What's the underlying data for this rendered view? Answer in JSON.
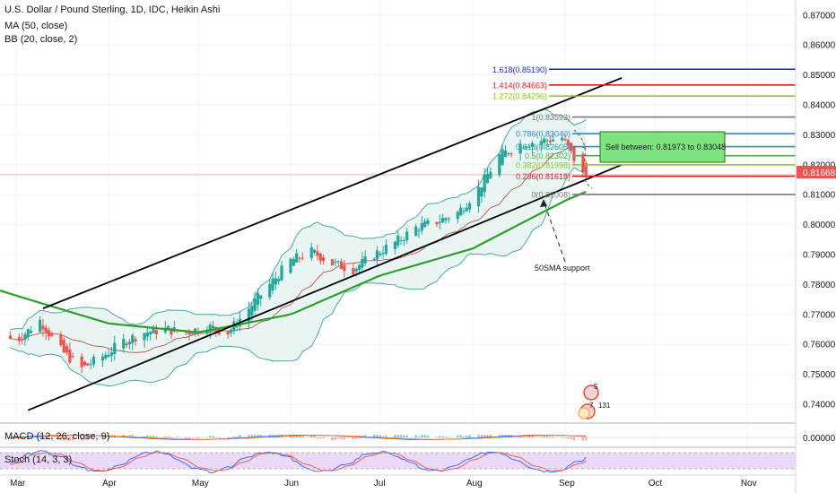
{
  "header": {
    "title": "U.S. Dollar / Pound Sterling, 1D, IDC, Heikin Ashi",
    "ma_label": "MA (50, close)",
    "bb_label": "BB (20, close, 2)"
  },
  "panes": {
    "macd_label": "MACD (12, 26, close, 9)",
    "stoch_label": "Stoch (14, 3, 3)",
    "macd_value": "0.00000"
  },
  "price_axis": {
    "ticks": [
      "0.87000",
      "0.86000",
      "0.85000",
      "0.84000",
      "0.83000",
      "0.82000",
      "0.81000",
      "0.80000",
      "0.79000",
      "0.78000",
      "0.77000",
      "0.76000",
      "0.75000",
      "0.74000"
    ],
    "last_price": "0.81668"
  },
  "time_axis": {
    "labels": [
      "Mar",
      "Apr",
      "May",
      "Jun",
      "Jul",
      "Aug",
      "Sep",
      "Oct",
      "Nov"
    ]
  },
  "fib": [
    {
      "label": "1.618(0.85190)",
      "value": 0.8519,
      "color": "#1e26c9"
    },
    {
      "label": "1.414(0.84663)",
      "value": 0.84663,
      "color": "#e01b1b"
    },
    {
      "label": "1.272(0.84296)",
      "value": 0.84296,
      "color": "#8bc41e"
    },
    {
      "label": "1(0.83593)",
      "value": 0.83593,
      "color": "#787878"
    },
    {
      "label": "0.786(0.83040)",
      "value": 0.8304,
      "color": "#2a8bd4"
    },
    {
      "label": "0.618(0.82605)",
      "value": 0.82605,
      "color": "#15a0a0"
    },
    {
      "label": "0.5(0.82302)",
      "value": 0.82302,
      "color": "#4caf50"
    },
    {
      "label": "0.382(0.81998)",
      "value": 0.81998,
      "color": "#8bc41e"
    },
    {
      "label": "0.236(0.81618)",
      "value": 0.81618,
      "color": "#e01b1b"
    },
    {
      "label": "0(0.81008)",
      "value": 0.81008,
      "color": "#787878"
    }
  ],
  "annotations": {
    "sell_box": "Sell between: 0.81973 to 0.83048",
    "support": "50SMA support",
    "event_top": "5",
    "event_mid": "7",
    "event_right": "131"
  },
  "colors": {
    "up": "#26a69a",
    "down": "#ef5350",
    "ma": "#2e9d2e",
    "bb_basis": "#b2432f",
    "bb_band": "#4ea79f",
    "bb_fill": "#e6f4f2",
    "stoch_k": "#2962ff",
    "stoch_d": "#ef5350",
    "stoch_fill": "#ead9f7",
    "sell_box_fill": "#7fe37f"
  },
  "chart_data": {
    "type": "candlestick",
    "symbol": "USD/GBP",
    "interval": "1D",
    "ylim": [
      0.735,
      0.875
    ],
    "x_range": [
      "2020-02-28",
      "2020-11-09"
    ],
    "daily_closes_approx": [
      {
        "date": "2020-03-02",
        "close": 0.762
      },
      {
        "date": "2020-03-09",
        "close": 0.768
      },
      {
        "date": "2020-03-16",
        "close": 0.758
      },
      {
        "date": "2020-03-23",
        "close": 0.752
      },
      {
        "date": "2020-03-30",
        "close": 0.756
      },
      {
        "date": "2020-04-06",
        "close": 0.761
      },
      {
        "date": "2020-04-13",
        "close": 0.764
      },
      {
        "date": "2020-04-20",
        "close": 0.765
      },
      {
        "date": "2020-04-27",
        "close": 0.764
      },
      {
        "date": "2020-05-04",
        "close": 0.766
      },
      {
        "date": "2020-05-11",
        "close": 0.764
      },
      {
        "date": "2020-05-18",
        "close": 0.772
      },
      {
        "date": "2020-05-25",
        "close": 0.78
      },
      {
        "date": "2020-06-01",
        "close": 0.788
      },
      {
        "date": "2020-06-08",
        "close": 0.791
      },
      {
        "date": "2020-06-15",
        "close": 0.787
      },
      {
        "date": "2020-06-22",
        "close": 0.785
      },
      {
        "date": "2020-06-29",
        "close": 0.79
      },
      {
        "date": "2020-07-06",
        "close": 0.794
      },
      {
        "date": "2020-07-13",
        "close": 0.799
      },
      {
        "date": "2020-07-20",
        "close": 0.801
      },
      {
        "date": "2020-07-27",
        "close": 0.804
      },
      {
        "date": "2020-08-03",
        "close": 0.812
      },
      {
        "date": "2020-08-10",
        "close": 0.823
      },
      {
        "date": "2020-08-17",
        "close": 0.827
      },
      {
        "date": "2020-08-24",
        "close": 0.828
      },
      {
        "date": "2020-08-31",
        "close": 0.829
      },
      {
        "date": "2020-09-07",
        "close": 0.8167
      }
    ],
    "ma50_approx": [
      {
        "date": "2020-03-02",
        "value": 0.776
      },
      {
        "date": "2020-04-01",
        "value": 0.767
      },
      {
        "date": "2020-05-01",
        "value": 0.764
      },
      {
        "date": "2020-06-01",
        "value": 0.77
      },
      {
        "date": "2020-07-01",
        "value": 0.783
      },
      {
        "date": "2020-08-01",
        "value": 0.792
      },
      {
        "date": "2020-09-01",
        "value": 0.808
      },
      {
        "date": "2020-09-08",
        "value": 0.811
      }
    ],
    "channel": {
      "upper": [
        {
          "date": "2020-03-10",
          "price": 0.772
        },
        {
          "date": "2020-09-20",
          "price": 0.849
        }
      ],
      "lower": [
        {
          "date": "2020-03-05",
          "price": 0.738
        },
        {
          "date": "2020-09-20",
          "price": 0.82
        }
      ]
    }
  }
}
